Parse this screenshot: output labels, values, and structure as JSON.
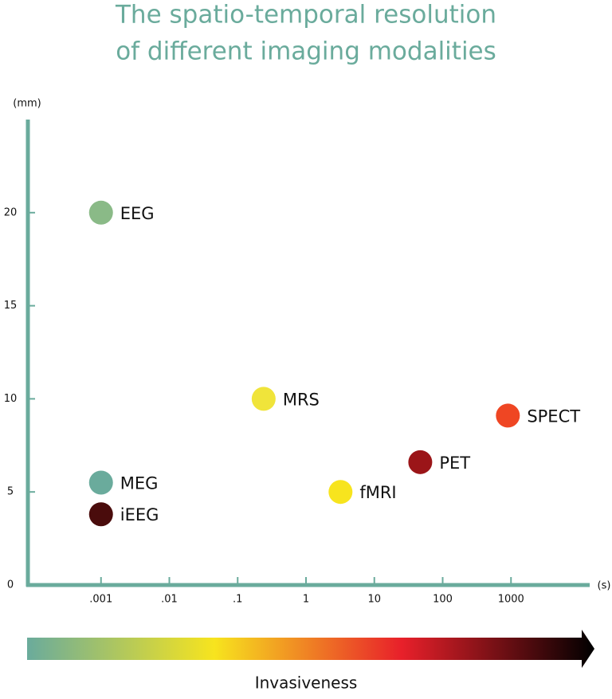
{
  "chart_data": {
    "type": "scatter",
    "title": [
      "The spatio-temporal resolution",
      "of different imaging modalities"
    ],
    "y_label": "(mm)",
    "x_label": "(s)",
    "xscale": "log",
    "xlim": [
      0.0001,
      10000
    ],
    "ylim": [
      0,
      25
    ],
    "xticks": [
      {
        "value": 0.001,
        "label": ".001"
      },
      {
        "value": 0.01,
        "label": ".01"
      },
      {
        "value": 0.1,
        "label": ".1"
      },
      1,
      10,
      100,
      1000
    ],
    "yticks": [
      0,
      5,
      10,
      15,
      20
    ],
    "axis_color": "#6aab9c",
    "series": [
      {
        "name": "EEG",
        "color": "#8aba87",
        "x": [
          0.001
        ],
        "values": [
          20
        ]
      },
      {
        "name": "MEG",
        "color": "#6aab9c",
        "x": [
          0.001
        ],
        "values": [
          5.5
        ]
      },
      {
        "name": "iEEG",
        "color": "#4a0c0c",
        "x": [
          0.001
        ],
        "values": [
          3.8
        ]
      },
      {
        "name": "MRS",
        "color": "#f0e43a",
        "x": [
          0.24
        ],
        "values": [
          10
        ]
      },
      {
        "name": "fMRI",
        "color": "#f7e41e",
        "x": [
          3.2
        ],
        "values": [
          5
        ]
      },
      {
        "name": "PET",
        "color": "#9b1518",
        "x": [
          47
        ],
        "values": [
          6.6
        ]
      },
      {
        "name": "SPECT",
        "color": "#ef4623",
        "x": [
          900
        ],
        "values": [
          9.1
        ]
      }
    ],
    "gradient_label": "Invasiveness"
  }
}
